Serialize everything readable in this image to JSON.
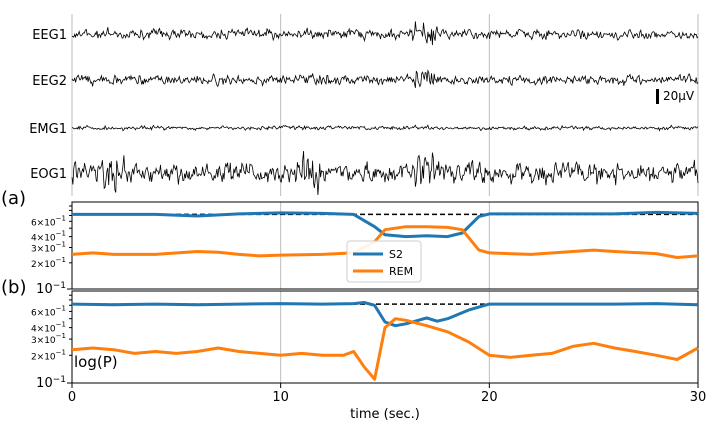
{
  "chart_data": [
    {
      "type": "line",
      "panel": "eeg-traces",
      "channels": [
        "EEG1",
        "EEG2",
        "EMG1",
        "EOG1"
      ],
      "x_range": [
        0,
        30
      ],
      "xticks": [
        0,
        10,
        20,
        30
      ],
      "grid": "vertical at x ticks",
      "scale_bar": {
        "label": "20μV",
        "channel": "EEG2"
      },
      "note": "raw signal traces; higher amplitude bursts around 14–18 s"
    },
    {
      "type": "line",
      "panel": "(a)",
      "label": "(a)",
      "yscale": "log",
      "ylim": [
        0.1,
        1.0
      ],
      "yticks": [
        "10^-1",
        "2x10^-1",
        "3x10^-1",
        "4x10^-1",
        "6x10^-1"
      ],
      "series": [
        {
          "name": "S2",
          "color": "#1f77b4",
          "x": [
            0,
            2,
            4,
            6,
            8,
            10,
            12,
            13.5,
            14.5,
            15,
            16,
            17,
            18,
            18.7,
            19.5,
            20,
            22,
            24,
            26,
            28,
            30
          ],
          "values": [
            0.72,
            0.72,
            0.72,
            0.69,
            0.73,
            0.75,
            0.74,
            0.72,
            0.52,
            0.42,
            0.4,
            0.41,
            0.4,
            0.44,
            0.68,
            0.73,
            0.73,
            0.73,
            0.73,
            0.76,
            0.74
          ]
        },
        {
          "name": "REM",
          "color": "#ff7f0e",
          "x": [
            0,
            1,
            2,
            4,
            6,
            7,
            8,
            9,
            10,
            12,
            13.5,
            14.5,
            15,
            16,
            17,
            18,
            18.7,
            19.5,
            20,
            22,
            24,
            25,
            26,
            28,
            29,
            30
          ],
          "values": [
            0.25,
            0.26,
            0.25,
            0.25,
            0.27,
            0.265,
            0.25,
            0.24,
            0.245,
            0.25,
            0.26,
            0.35,
            0.48,
            0.52,
            0.52,
            0.51,
            0.48,
            0.28,
            0.26,
            0.25,
            0.27,
            0.28,
            0.27,
            0.255,
            0.23,
            0.24
          ]
        }
      ],
      "reference_line": {
        "y": 0.72,
        "style": "dashed",
        "color": "#000000"
      },
      "legend": {
        "placement": "center",
        "entries": [
          "S2",
          "REM"
        ]
      }
    },
    {
      "type": "line",
      "panel": "(b)",
      "label": "(b)",
      "yscale": "log",
      "ylim": [
        0.1,
        1.0
      ],
      "yticks": [
        "10^-1",
        "2x10^-1",
        "3x10^-1",
        "4x10^-1",
        "6x10^-1"
      ],
      "ylabel": "log(P)",
      "series": [
        {
          "name": "S2",
          "color": "#1f77b4",
          "x": [
            0,
            2,
            4,
            6,
            8,
            10,
            12,
            13.5,
            14,
            14.5,
            15,
            15.5,
            16,
            17,
            17.5,
            18,
            19,
            20,
            22,
            24,
            26,
            28,
            30
          ],
          "values": [
            0.72,
            0.71,
            0.72,
            0.71,
            0.72,
            0.73,
            0.72,
            0.73,
            0.75,
            0.7,
            0.46,
            0.42,
            0.44,
            0.51,
            0.47,
            0.5,
            0.62,
            0.72,
            0.72,
            0.72,
            0.72,
            0.73,
            0.71
          ]
        },
        {
          "name": "REM",
          "color": "#ff7f0e",
          "x": [
            0,
            1,
            2,
            3,
            4,
            5,
            6,
            7,
            8,
            9,
            10,
            11,
            12,
            13,
            13.5,
            14,
            14.5,
            15,
            15.5,
            16,
            17,
            18,
            19,
            20,
            21,
            22,
            23,
            24,
            25,
            26,
            27,
            28,
            29,
            30
          ],
          "values": [
            0.23,
            0.24,
            0.23,
            0.21,
            0.22,
            0.21,
            0.22,
            0.24,
            0.22,
            0.21,
            0.2,
            0.21,
            0.2,
            0.2,
            0.22,
            0.15,
            0.11,
            0.4,
            0.5,
            0.48,
            0.42,
            0.36,
            0.28,
            0.2,
            0.19,
            0.2,
            0.21,
            0.25,
            0.27,
            0.24,
            0.22,
            0.2,
            0.18,
            0.24
          ]
        }
      ],
      "reference_line": {
        "y": 0.72,
        "style": "dashed",
        "color": "#000000"
      },
      "xlabel": "time (sec.)",
      "xlim": [
        0,
        30
      ],
      "xticks": [
        0,
        10,
        20,
        30
      ]
    }
  ]
}
